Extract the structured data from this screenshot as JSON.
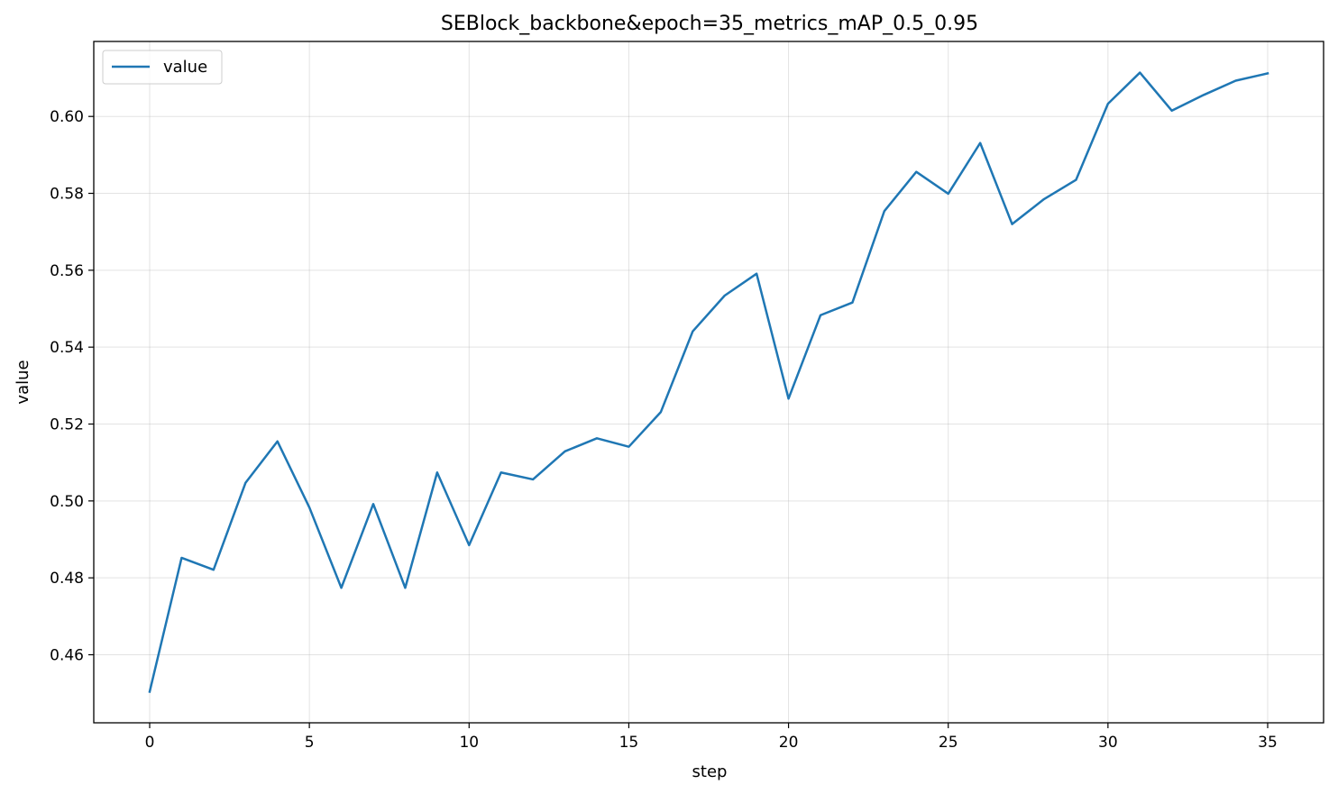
{
  "chart_data": {
    "type": "line",
    "title": "SEBlock_backbone&epoch=35_metrics_mAP_0.5_0.95",
    "xlabel": "step",
    "ylabel": "value",
    "xlim": [
      -1.75,
      36.75
    ],
    "ylim": [
      0.4423,
      0.6195
    ],
    "xticks": [
      0,
      5,
      10,
      15,
      20,
      25,
      30,
      35
    ],
    "yticks": [
      0.46,
      0.48,
      0.5,
      0.52,
      0.54,
      0.56,
      0.58,
      0.6
    ],
    "ytick_labels": [
      "0.46",
      "0.48",
      "0.50",
      "0.52",
      "0.54",
      "0.56",
      "0.58",
      "0.60"
    ],
    "grid": true,
    "legend_position": "top-left",
    "series": [
      {
        "name": "value",
        "color": "#1f77b4",
        "x": [
          0,
          1,
          2,
          3,
          4,
          5,
          6,
          7,
          8,
          9,
          10,
          11,
          12,
          13,
          14,
          15,
          16,
          17,
          18,
          19,
          20,
          21,
          22,
          23,
          24,
          25,
          26,
          27,
          28,
          29,
          30,
          31,
          32,
          33,
          34,
          35
        ],
        "values": [
          0.4504,
          0.4852,
          0.4821,
          0.5047,
          0.5155,
          0.4983,
          0.4774,
          0.4992,
          0.4774,
          0.5074,
          0.4885,
          0.5074,
          0.5056,
          0.5129,
          0.5163,
          0.5141,
          0.5231,
          0.5441,
          0.5534,
          0.5591,
          0.5266,
          0.5483,
          0.5516,
          0.5754,
          0.5856,
          0.5799,
          0.5931,
          0.572,
          0.5785,
          0.5835,
          0.6033,
          0.6114,
          0.6015,
          0.6056,
          0.6093,
          0.6112
        ]
      }
    ]
  }
}
